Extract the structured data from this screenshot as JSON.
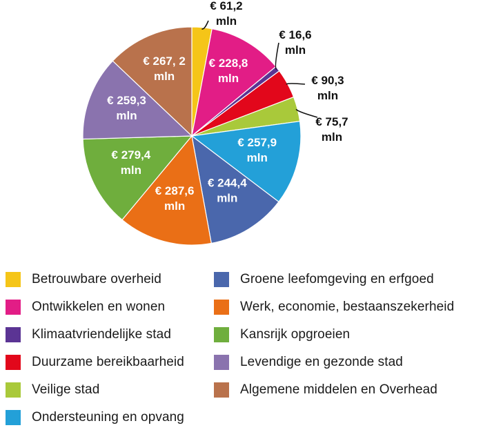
{
  "chart_data": {
    "type": "pie",
    "unit_prefix": "€",
    "unit_suffix": "mln",
    "slices": [
      {
        "name": "Betrouwbare overheid",
        "value": 61.2,
        "label": "€ 61,2",
        "unit": "mln",
        "color": "#f5c518"
      },
      {
        "name": "Ontwikkelen en wonen",
        "value": 228.8,
        "label": "€ 228,8",
        "unit": "mln",
        "color": "#e21d86"
      },
      {
        "name": "Klimaatvriendelijke stad",
        "value": 16.6,
        "label": "€ 16,6",
        "unit": "mln",
        "color": "#5b3494"
      },
      {
        "name": "Duurzame bereikbaarheid",
        "value": 90.3,
        "label": "€ 90,3",
        "unit": "mln",
        "color": "#e2071b"
      },
      {
        "name": "Veilige stad",
        "value": 75.7,
        "label": "€ 75,7",
        "unit": "mln",
        "color": "#a9c93a"
      },
      {
        "name": "Ondersteuning en opvang",
        "value": 257.9,
        "label": "€ 257,9",
        "unit": "mln",
        "color": "#23a0d8"
      },
      {
        "name": "Groene leefomgeving en erfgoed",
        "value": 244.4,
        "label": "€ 244,4",
        "unit": "mln",
        "color": "#4a67ac"
      },
      {
        "name": "Werk, economie, bestaanszekerheid",
        "value": 287.6,
        "label": "€ 287,6",
        "unit": "mln",
        "color": "#ea6f16"
      },
      {
        "name": "Kansrijk opgroeien",
        "value": 279.4,
        "label": "€ 279,4",
        "unit": "mln",
        "color": "#6fae3d"
      },
      {
        "name": "Levendige en gezonde stad",
        "value": 259.3,
        "label": "€ 259,3",
        "unit": "mln",
        "color": "#8a73ae"
      },
      {
        "name": "Algemene middelen en Overhead",
        "value": 267.2,
        "label": "€ 267, 2",
        "unit": "mln",
        "color": "#b9724c"
      }
    ]
  },
  "legend": {
    "left": [
      {
        "label": "Betrouwbare overheid",
        "color": "#f5c518"
      },
      {
        "label": "Ontwikkelen en wonen",
        "color": "#e21d86"
      },
      {
        "label": "Klimaatvriendelijke stad",
        "color": "#5b3494"
      },
      {
        "label": "Duurzame bereikbaarheid",
        "color": "#e2071b"
      },
      {
        "label": "Veilige stad",
        "color": "#a9c93a"
      },
      {
        "label": "Ondersteuning en opvang",
        "color": "#23a0d8"
      }
    ],
    "right": [
      {
        "label": "Groene leefomgeving en erfgoed",
        "color": "#4a67ac"
      },
      {
        "label": "Werk, economie, bestaanszekerheid",
        "color": "#ea6f16"
      },
      {
        "label": "Kansrijk opgroeien",
        "color": "#6fae3d"
      },
      {
        "label": "Levendige en gezonde stad",
        "color": "#8a73ae"
      },
      {
        "label": "Algemene middelen en Overhead",
        "color": "#b9724c"
      }
    ]
  }
}
